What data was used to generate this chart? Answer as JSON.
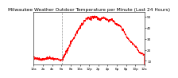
{
  "title": "Milwaukee Weather Outdoor Temperature per Minute (Last 24 Hours)",
  "line_color": "#ff0000",
  "background_color": "#ffffff",
  "plot_bg_color": "#ffffff",
  "grid_color": "#cccccc",
  "ylim": [
    7,
    54
  ],
  "xlim": [
    0,
    1439
  ],
  "vline_x": 370,
  "vline_color": "#999999",
  "vline_style": "--",
  "title_fontsize": 4.2,
  "tick_fontsize": 3.0,
  "line_width": 0.5,
  "y_tick_positions": [
    10,
    20,
    30,
    40,
    50
  ],
  "y_tick_labels": [
    "10",
    "20",
    "30",
    "40",
    "50"
  ],
  "x_tick_positions": [
    0,
    120,
    240,
    360,
    480,
    600,
    720,
    840,
    960,
    1080,
    1200,
    1320,
    1439
  ],
  "x_tick_labels": [
    "12a",
    "2a",
    "4a",
    "6a",
    "8a",
    "10a",
    "12p",
    "2p",
    "4p",
    "6p",
    "8p",
    "10p",
    "12a"
  ],
  "segments": [
    {
      "x_start": 0,
      "x_end": 100,
      "y_start": 13.0,
      "y_end": 11.0,
      "noise": 1.2
    },
    {
      "x_start": 100,
      "x_end": 200,
      "y_start": 11.0,
      "y_end": 12.5,
      "noise": 1.2
    },
    {
      "x_start": 200,
      "x_end": 370,
      "y_start": 12.5,
      "y_end": 10.5,
      "noise": 1.0
    },
    {
      "x_start": 370,
      "x_end": 480,
      "y_start": 10.5,
      "y_end": 26.0,
      "noise": 1.5
    },
    {
      "x_start": 480,
      "x_end": 580,
      "y_start": 26.0,
      "y_end": 38.0,
      "noise": 1.2
    },
    {
      "x_start": 580,
      "x_end": 660,
      "y_start": 38.0,
      "y_end": 46.0,
      "noise": 1.2
    },
    {
      "x_start": 660,
      "x_end": 700,
      "y_start": 46.0,
      "y_end": 49.0,
      "noise": 1.0
    },
    {
      "x_start": 700,
      "x_end": 750,
      "y_start": 49.0,
      "y_end": 48.5,
      "noise": 1.5
    },
    {
      "x_start": 750,
      "x_end": 800,
      "y_start": 48.5,
      "y_end": 50.0,
      "noise": 1.5
    },
    {
      "x_start": 800,
      "x_end": 860,
      "y_start": 50.0,
      "y_end": 47.0,
      "noise": 1.2
    },
    {
      "x_start": 860,
      "x_end": 920,
      "y_start": 47.0,
      "y_end": 49.0,
      "noise": 1.2
    },
    {
      "x_start": 920,
      "x_end": 970,
      "y_start": 49.0,
      "y_end": 46.5,
      "noise": 1.0
    },
    {
      "x_start": 970,
      "x_end": 1020,
      "y_start": 46.5,
      "y_end": 47.0,
      "noise": 1.0
    },
    {
      "x_start": 1020,
      "x_end": 1080,
      "y_start": 47.0,
      "y_end": 43.0,
      "noise": 1.0
    },
    {
      "x_start": 1080,
      "x_end": 1130,
      "y_start": 43.0,
      "y_end": 41.0,
      "noise": 1.0
    },
    {
      "x_start": 1130,
      "x_end": 1180,
      "y_start": 41.0,
      "y_end": 36.0,
      "noise": 1.0
    },
    {
      "x_start": 1180,
      "x_end": 1220,
      "y_start": 36.0,
      "y_end": 30.5,
      "noise": 1.0
    },
    {
      "x_start": 1220,
      "x_end": 1280,
      "y_start": 30.5,
      "y_end": 26.0,
      "noise": 0.8
    },
    {
      "x_start": 1280,
      "x_end": 1340,
      "y_start": 26.0,
      "y_end": 22.0,
      "noise": 0.8
    },
    {
      "x_start": 1340,
      "x_end": 1380,
      "y_start": 22.0,
      "y_end": 17.0,
      "noise": 0.8
    },
    {
      "x_start": 1380,
      "x_end": 1439,
      "y_start": 17.0,
      "y_end": 15.5,
      "noise": 0.8
    }
  ]
}
